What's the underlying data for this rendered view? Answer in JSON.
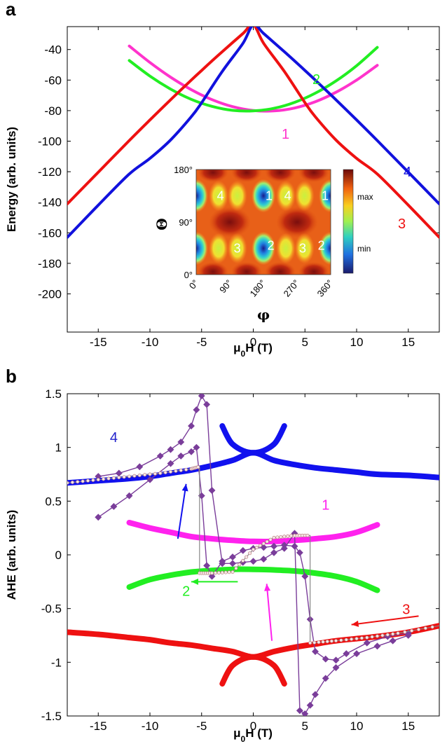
{
  "chart_data": [
    {
      "panel": "a",
      "type": "line",
      "xlabel": "μ0H (T)",
      "ylabel": "Energy (arb. units)",
      "xlim": [
        -18,
        18
      ],
      "ylim": [
        -225,
        -25
      ],
      "xticks": [
        -15,
        -10,
        -5,
        0,
        5,
        10,
        15
      ],
      "yticks": [
        -200,
        -180,
        -160,
        -140,
        -120,
        -100,
        -80,
        -60,
        -40
      ],
      "grid": false,
      "series": [
        {
          "name": "1",
          "label": "1",
          "color": "#ff33cc",
          "x": [
            -12,
            -10,
            -8,
            -6,
            -4,
            -2,
            0,
            2,
            4,
            6,
            8,
            10,
            12
          ],
          "y": [
            -37.7,
            -48.5,
            -58.1,
            -66.3,
            -72.8,
            -77.4,
            -79.9,
            -80.2,
            -78.3,
            -74.2,
            -68.0,
            -60.0,
            -50.3
          ]
        },
        {
          "name": "2",
          "label": "2",
          "color": "#22ee22",
          "x": [
            -12,
            -10,
            -8,
            -6,
            -4,
            -2,
            0,
            2,
            4,
            6,
            8,
            10,
            12
          ],
          "y": [
            -47.2,
            -57.4,
            -65.9,
            -72.6,
            -77.2,
            -79.8,
            -80.2,
            -78.5,
            -74.6,
            -68.6,
            -60.6,
            -50.6,
            -38.6
          ]
        },
        {
          "name": "3",
          "label": "3",
          "color": "#ee1111",
          "x": [
            -18,
            -15,
            -12,
            -10,
            -8,
            -6,
            -5,
            -3,
            -1,
            0,
            1,
            3,
            5,
            6,
            8,
            10,
            12,
            15,
            18
          ],
          "y": [
            -141.1,
            -120.3,
            -99.6,
            -86.1,
            -72.9,
            -60.0,
            -53.7,
            -41.4,
            -29.5,
            -23.7,
            -35.9,
            -54.3,
            -74.8,
            -84.0,
            -99.2,
            -111.3,
            -121.5,
            -141.9,
            -163.0
          ]
        },
        {
          "name": "4",
          "label": "4",
          "color": "#1111dd",
          "x": [
            -18,
            -15,
            -12,
            -10,
            -8,
            -6,
            -5,
            -3,
            -1,
            0,
            1,
            3,
            5,
            6,
            8,
            10,
            12,
            15,
            18
          ],
          "y": [
            -163.0,
            -141.9,
            -121.5,
            -111.3,
            -99.2,
            -84.0,
            -74.8,
            -54.3,
            -35.9,
            -23.7,
            -29.5,
            -41.4,
            -53.7,
            -60.0,
            -72.9,
            -86.1,
            -99.6,
            -120.3,
            -141.1
          ]
        }
      ],
      "inset": {
        "type": "heatmap",
        "xlabel": "φ",
        "ylabel": "Θ",
        "xticks": [
          "0°",
          "90°",
          "180°",
          "270°",
          "360°"
        ],
        "yticks": [
          "0°",
          "90°",
          "180°"
        ],
        "colorbar": {
          "max_label": "max",
          "min_label": "min"
        },
        "region_labels": [
          {
            "text": "4",
            "phi": 65,
            "theta": 135
          },
          {
            "text": "1",
            "phi": 195,
            "theta": 135
          },
          {
            "text": "4",
            "phi": 245,
            "theta": 135
          },
          {
            "text": "1",
            "phi": 345,
            "theta": 135
          },
          {
            "text": "3",
            "phi": 110,
            "theta": 45
          },
          {
            "text": "2",
            "phi": 200,
            "theta": 50
          },
          {
            "text": "3",
            "phi": 285,
            "theta": 45
          },
          {
            "text": "2",
            "phi": 335,
            "theta": 50
          }
        ]
      }
    },
    {
      "panel": "b",
      "type": "line",
      "xlabel": "μ0H (T)",
      "ylabel": "AHE (arb. units)",
      "xlim": [
        -18,
        18
      ],
      "ylim": [
        -1.5,
        1.5
      ],
      "xticks": [
        -15,
        -10,
        -5,
        0,
        5,
        10,
        15
      ],
      "yticks": [
        -1.5,
        -1,
        -0.5,
        0,
        0.5,
        1,
        1.5
      ],
      "grid": false,
      "series": [
        {
          "name": "1",
          "label": "1",
          "color": "#ff22ee",
          "x": [
            -12,
            -10,
            -8,
            -6,
            -4,
            -2,
            0,
            2,
            4,
            6,
            8,
            10,
            12
          ],
          "y": [
            0.3,
            0.25,
            0.21,
            0.17,
            0.15,
            0.135,
            0.125,
            0.125,
            0.135,
            0.15,
            0.17,
            0.21,
            0.28
          ]
        },
        {
          "name": "2",
          "label": "2",
          "color": "#22ee22",
          "x": [
            -12,
            -10,
            -8,
            -6,
            -4,
            -2,
            0,
            2,
            4,
            6,
            8,
            10,
            12
          ],
          "y": [
            -0.3,
            -0.23,
            -0.19,
            -0.16,
            -0.145,
            -0.135,
            -0.135,
            -0.14,
            -0.15,
            -0.17,
            -0.2,
            -0.25,
            -0.33
          ]
        },
        {
          "name": "3",
          "label": "3",
          "color": "#ee1111",
          "x": [
            -18,
            -15,
            -12,
            -10,
            -8,
            -6,
            -4,
            -2,
            0,
            2,
            4,
            6,
            8,
            10,
            12,
            15,
            18
          ],
          "y": [
            -0.72,
            -0.74,
            -0.77,
            -0.79,
            -0.82,
            -0.84,
            -0.87,
            -0.9,
            -0.95,
            -0.9,
            -0.86,
            -0.83,
            -0.8,
            -0.78,
            -0.76,
            -0.72,
            -0.66
          ]
        },
        {
          "name": "3b",
          "label": "",
          "color": "#ee1111",
          "x": [
            -3,
            -2.5,
            -2,
            -1,
            0,
            1,
            2,
            2.5,
            3
          ],
          "y": [
            -1.2,
            -1.1,
            -1.03,
            -0.97,
            -0.95,
            -0.97,
            -1.03,
            -1.1,
            -1.2
          ]
        },
        {
          "name": "4",
          "label": "4",
          "color": "#1111ee",
          "x": [
            -18,
            -15,
            -12,
            -10,
            -8,
            -6,
            -4,
            -2,
            0,
            2,
            4,
            6,
            8,
            10,
            12,
            15,
            18
          ],
          "y": [
            0.67,
            0.69,
            0.71,
            0.73,
            0.76,
            0.79,
            0.83,
            0.88,
            0.95,
            0.88,
            0.84,
            0.81,
            0.79,
            0.77,
            0.75,
            0.74,
            0.72
          ]
        },
        {
          "name": "4b",
          "label": "",
          "color": "#1111ee",
          "x": [
            -3,
            -2.5,
            -2,
            -1,
            0,
            1,
            2,
            2.5,
            3
          ],
          "y": [
            1.2,
            1.1,
            1.03,
            0.97,
            0.95,
            0.97,
            1.03,
            1.1,
            1.2
          ]
        },
        {
          "name": "measured-down",
          "label": "",
          "color": "#7a3d9a",
          "x": [
            15,
            13,
            11,
            9,
            8,
            7,
            6,
            5.5,
            5,
            4.5,
            4,
            3,
            2,
            1,
            0,
            -1,
            -2,
            -3,
            -4,
            -4.5,
            -5,
            -5.5,
            -6,
            -7,
            -8,
            -10,
            -12,
            -13.5,
            -15
          ],
          "y": [
            -0.73,
            -0.76,
            -0.82,
            -0.92,
            -0.98,
            -0.97,
            -0.9,
            -0.6,
            -0.2,
            0.02,
            0.08,
            0.09,
            0.08,
            0.07,
            0.06,
            0.04,
            -0.02,
            -0.06,
            -0.2,
            -0.1,
            0.55,
            1.0,
            0.96,
            0.92,
            0.85,
            0.7,
            0.55,
            0.45,
            0.35
          ]
        },
        {
          "name": "measured-up",
          "label": "",
          "color": "#7a3d9a",
          "x": [
            -15,
            -13,
            -11,
            -9,
            -8,
            -7,
            -6,
            -5.5,
            -5,
            -4.5,
            -4,
            -3,
            -2,
            -1,
            0,
            1,
            2,
            3,
            4,
            4.5,
            5,
            5.5,
            6,
            7,
            8,
            10,
            12,
            13.5,
            15
          ],
          "y": [
            0.73,
            0.76,
            0.82,
            0.92,
            0.98,
            1.05,
            1.2,
            1.35,
            1.48,
            1.4,
            0.6,
            -0.08,
            -0.08,
            -0.07,
            -0.06,
            -0.04,
            0.02,
            0.06,
            0.2,
            -1.45,
            -1.48,
            -1.4,
            -1.3,
            -1.15,
            -1.05,
            -0.92,
            -0.85,
            -0.8,
            -0.75
          ]
        },
        {
          "name": "transition-loop",
          "label": "",
          "color": "#d8a8a8",
          "x": [
            -18,
            -15,
            -12,
            -9,
            -6,
            -5.2,
            -5.2,
            -4,
            -2,
            0,
            2,
            4,
            5.5,
            5.5,
            8,
            11,
            14,
            18
          ],
          "y": [
            0.67,
            0.7,
            0.73,
            0.76,
            0.8,
            0.82,
            -0.17,
            -0.17,
            -0.16,
            0.05,
            0.16,
            0.18,
            0.18,
            -0.82,
            -0.8,
            -0.77,
            -0.73,
            -0.66
          ]
        }
      ],
      "annotations": [
        {
          "text": "4",
          "x": -13.5,
          "y": 1.05,
          "color": "#2222cc"
        },
        {
          "text": "1",
          "x": 7.0,
          "y": 0.42,
          "color": "#ff22ee"
        },
        {
          "text": "2",
          "x": -6.5,
          "y": -0.38,
          "color": "#22ee22"
        },
        {
          "text": "3",
          "x": 14.8,
          "y": -0.55,
          "color": "#ee1111"
        }
      ],
      "arrows": [
        {
          "color": "#1111ee",
          "x1": -7.3,
          "y1": 0.15,
          "x2": -6.5,
          "y2": 0.66
        },
        {
          "color": "#22ee22",
          "x1": -1.5,
          "y1": -0.25,
          "x2": -6.0,
          "y2": -0.25
        },
        {
          "color": "#ff22ee",
          "x1": 1.8,
          "y1": -0.8,
          "x2": 1.3,
          "y2": -0.27
        },
        {
          "color": "#ee1111",
          "x1": 16.0,
          "y1": -0.57,
          "x2": 9.5,
          "y2": -0.65
        }
      ]
    }
  ]
}
